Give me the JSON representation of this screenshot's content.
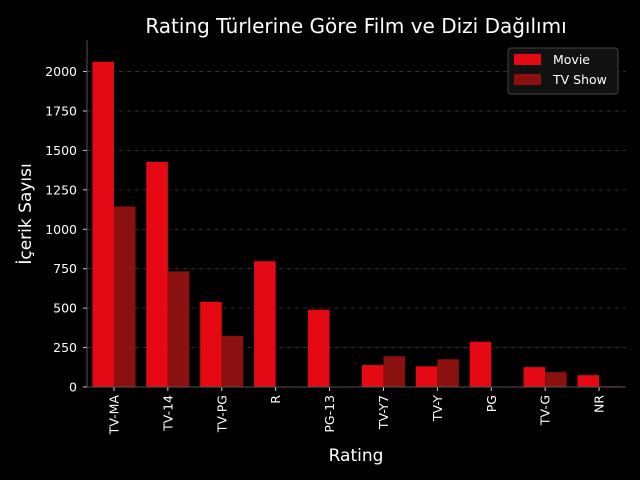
{
  "chart_data": {
    "type": "bar",
    "title": "Rating Türlerine Göre Film ve Dizi Dağılımı",
    "xlabel": "Rating",
    "ylabel": "İçerik Sayısı",
    "categories": [
      "TV-MA",
      "TV-14",
      "TV-PG",
      "R",
      "PG-13",
      "TV-Y7",
      "TV-Y",
      "PG",
      "TV-G",
      "NR"
    ],
    "series": [
      {
        "name": "Movie",
        "color": "#e50914",
        "values": [
          2062,
          1427,
          540,
          797,
          490,
          139,
          131,
          287,
          126,
          75
        ]
      },
      {
        "name": "TV Show",
        "color": "#8b1010",
        "values": [
          1145,
          733,
          323,
          2,
          0,
          195,
          176,
          0,
          94,
          5
        ]
      }
    ],
    "ylim": [
      0,
      2200
    ],
    "yticks": [
      0,
      250,
      500,
      750,
      1000,
      1250,
      1500,
      1750,
      2000
    ],
    "grid": true,
    "legend_position": "top-right",
    "background": "#000000"
  }
}
